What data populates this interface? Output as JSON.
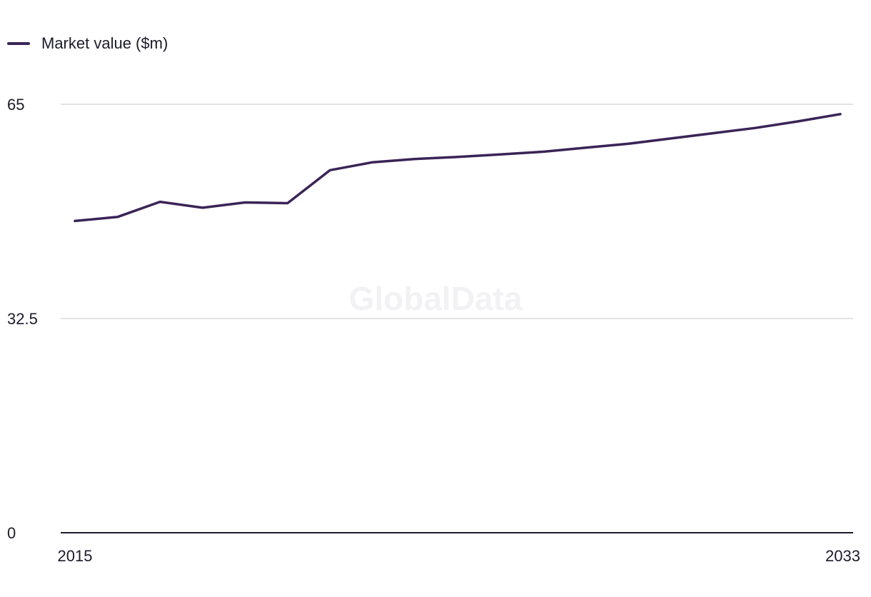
{
  "chart_data": {
    "type": "line",
    "x": [
      2015,
      2016,
      2017,
      2018,
      2019,
      2020,
      2021,
      2022,
      2023,
      2024,
      2025,
      2026,
      2027,
      2028,
      2029,
      2030,
      2031,
      2032,
      2033
    ],
    "series": [
      {
        "name": "Market value ($m)",
        "values": [
          47.3,
          47.9,
          50.2,
          49.3,
          50.1,
          50.0,
          55.0,
          56.2,
          56.7,
          57.0,
          57.4,
          57.8,
          58.4,
          59.0,
          59.8,
          60.6,
          61.4,
          62.4,
          63.5
        ],
        "color": "#3a2456"
      }
    ],
    "ylim": [
      0,
      65
    ],
    "yticks": [
      "0",
      "32.5",
      "65"
    ],
    "xtick_labels": [
      "2015",
      "2033"
    ],
    "legend_position": "top-left",
    "grid": true
  },
  "watermark": "GlobalData",
  "colors": {
    "gridline": "#d9d9de",
    "axis": "#1c1b2a"
  }
}
